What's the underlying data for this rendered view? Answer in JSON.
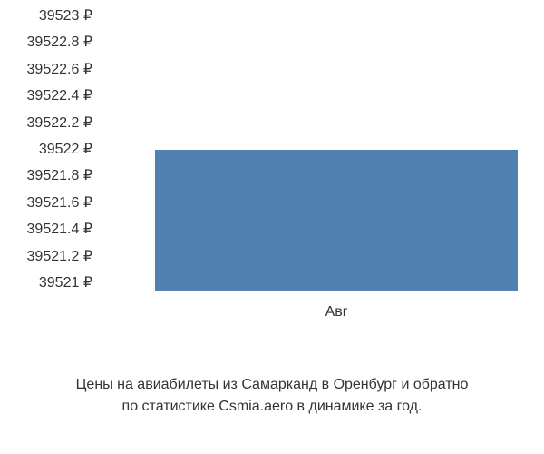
{
  "chart": {
    "type": "bar",
    "y_axis": {
      "labels": [
        "39523 ₽",
        "39522.8 ₽",
        "39522.6 ₽",
        "39522.4 ₽",
        "39522.2 ₽",
        "39522 ₽",
        "39521.8 ₽",
        "39521.6 ₽",
        "39521.4 ₽",
        "39521.2 ₽",
        "39521 ₽"
      ],
      "min": 39521,
      "max": 39523,
      "step": 0.2
    },
    "x_axis": {
      "categories": [
        "Авг"
      ]
    },
    "data": {
      "values": [
        39522
      ]
    },
    "styling": {
      "bar_color": "#5081b0",
      "bar_width_percent": 85,
      "bar_left_percent": 12,
      "background_color": "#ffffff",
      "text_color": "#333333",
      "label_fontsize": 16,
      "caption_fontsize": 16
    }
  },
  "caption": {
    "line1": "Цены на авиабилеты из Самарканд в Оренбург и обратно",
    "line2": "по статистике Csmia.aero в динамике за год."
  }
}
